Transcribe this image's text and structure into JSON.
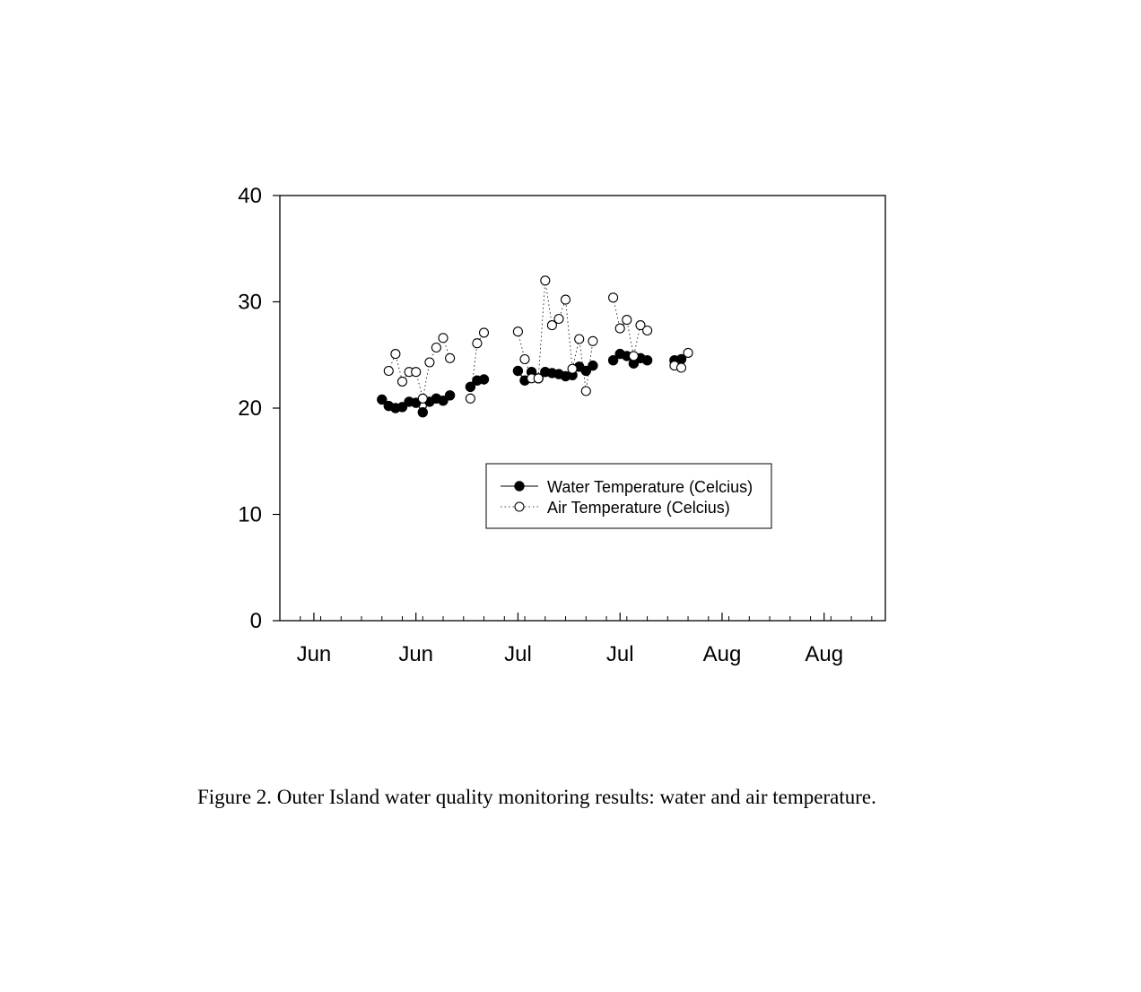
{
  "caption": "Figure 2.  Outer Island water quality monitoring results: water and air temperature.",
  "chart_data": {
    "type": "scatter",
    "title": "",
    "xlabel": "",
    "ylabel": "",
    "ylim": [
      0,
      40
    ],
    "yticks": [
      0,
      10,
      20,
      30,
      40
    ],
    "xlim": [
      "2010-05-29",
      "2010-08-26"
    ],
    "xticks": [
      {
        "label": "Jun",
        "date": "2010-06-03"
      },
      {
        "label": "Jun",
        "date": "2010-06-18"
      },
      {
        "label": "Jul",
        "date": "2010-07-03"
      },
      {
        "label": "Jul",
        "date": "2010-07-18"
      },
      {
        "label": "Aug",
        "date": "2010-08-02"
      },
      {
        "label": "Aug",
        "date": "2010-08-17"
      }
    ],
    "grid": false,
    "legend_position": "center",
    "series": [
      {
        "name": "Water Temperature (Celcius)",
        "marker": "filled-circle",
        "line": "solid",
        "color": "#000000",
        "points": [
          {
            "x": "2010-06-13",
            "y": 20.8
          },
          {
            "x": "2010-06-14",
            "y": 20.2
          },
          {
            "x": "2010-06-15",
            "y": 20.0
          },
          {
            "x": "2010-06-16",
            "y": 20.1
          },
          {
            "x": "2010-06-17",
            "y": 20.6
          },
          {
            "x": "2010-06-18",
            "y": 20.5
          },
          {
            "x": "2010-06-19",
            "y": 19.6
          },
          {
            "x": "2010-06-20",
            "y": 20.6
          },
          {
            "x": "2010-06-21",
            "y": 20.9
          },
          {
            "x": "2010-06-22",
            "y": 20.7
          },
          {
            "x": "2010-06-23",
            "y": 21.2
          },
          null,
          {
            "x": "2010-06-26",
            "y": 22.0
          },
          {
            "x": "2010-06-27",
            "y": 22.6
          },
          {
            "x": "2010-06-28",
            "y": 22.7
          },
          null,
          {
            "x": "2010-07-03",
            "y": 23.5
          },
          {
            "x": "2010-07-04",
            "y": 22.6
          },
          {
            "x": "2010-07-05",
            "y": 23.4
          },
          {
            "x": "2010-07-06",
            "y": 22.8
          },
          {
            "x": "2010-07-07",
            "y": 23.4
          },
          {
            "x": "2010-07-08",
            "y": 23.3
          },
          {
            "x": "2010-07-09",
            "y": 23.2
          },
          {
            "x": "2010-07-10",
            "y": 23.0
          },
          {
            "x": "2010-07-11",
            "y": 23.1
          },
          {
            "x": "2010-07-12",
            "y": 23.9
          },
          {
            "x": "2010-07-13",
            "y": 23.5
          },
          {
            "x": "2010-07-14",
            "y": 24.0
          },
          null,
          {
            "x": "2010-07-17",
            "y": 24.5
          },
          {
            "x": "2010-07-18",
            "y": 25.1
          },
          {
            "x": "2010-07-19",
            "y": 24.9
          },
          {
            "x": "2010-07-20",
            "y": 24.2
          },
          {
            "x": "2010-07-21",
            "y": 24.7
          },
          {
            "x": "2010-07-22",
            "y": 24.5
          },
          null,
          {
            "x": "2010-07-26",
            "y": 24.5
          },
          {
            "x": "2010-07-27",
            "y": 24.6
          }
        ]
      },
      {
        "name": "Air Temperature (Celcius)",
        "marker": "open-circle",
        "line": "dotted",
        "color": "#000000",
        "points": [
          {
            "x": "2010-06-14",
            "y": 23.5
          },
          {
            "x": "2010-06-15",
            "y": 25.1
          },
          {
            "x": "2010-06-16",
            "y": 22.5
          },
          {
            "x": "2010-06-17",
            "y": 23.4
          },
          {
            "x": "2010-06-18",
            "y": 23.4
          },
          {
            "x": "2010-06-19",
            "y": 20.9
          },
          {
            "x": "2010-06-20",
            "y": 24.3
          },
          {
            "x": "2010-06-21",
            "y": 25.7
          },
          {
            "x": "2010-06-22",
            "y": 26.6
          },
          {
            "x": "2010-06-23",
            "y": 24.7
          },
          null,
          {
            "x": "2010-06-26",
            "y": 20.9
          },
          {
            "x": "2010-06-27",
            "y": 26.1
          },
          {
            "x": "2010-06-28",
            "y": 27.1
          },
          null,
          {
            "x": "2010-07-03",
            "y": 27.2
          },
          {
            "x": "2010-07-04",
            "y": 24.6
          },
          {
            "x": "2010-07-05",
            "y": 22.8
          },
          {
            "x": "2010-07-06",
            "y": 22.8
          },
          {
            "x": "2010-07-07",
            "y": 32.0
          },
          {
            "x": "2010-07-08",
            "y": 27.8
          },
          {
            "x": "2010-07-09",
            "y": 28.4
          },
          {
            "x": "2010-07-10",
            "y": 30.2
          },
          {
            "x": "2010-07-11",
            "y": 23.7
          },
          {
            "x": "2010-07-12",
            "y": 26.5
          },
          {
            "x": "2010-07-13",
            "y": 21.6
          },
          {
            "x": "2010-07-14",
            "y": 26.3
          },
          null,
          {
            "x": "2010-07-17",
            "y": 30.4
          },
          {
            "x": "2010-07-18",
            "y": 27.5
          },
          {
            "x": "2010-07-19",
            "y": 28.3
          },
          {
            "x": "2010-07-20",
            "y": 24.9
          },
          {
            "x": "2010-07-21",
            "y": 27.8
          },
          {
            "x": "2010-07-22",
            "y": 27.3
          },
          null,
          {
            "x": "2010-07-26",
            "y": 24.0
          },
          {
            "x": "2010-07-27",
            "y": 23.8
          },
          {
            "x": "2010-07-28",
            "y": 25.2
          }
        ]
      }
    ]
  }
}
